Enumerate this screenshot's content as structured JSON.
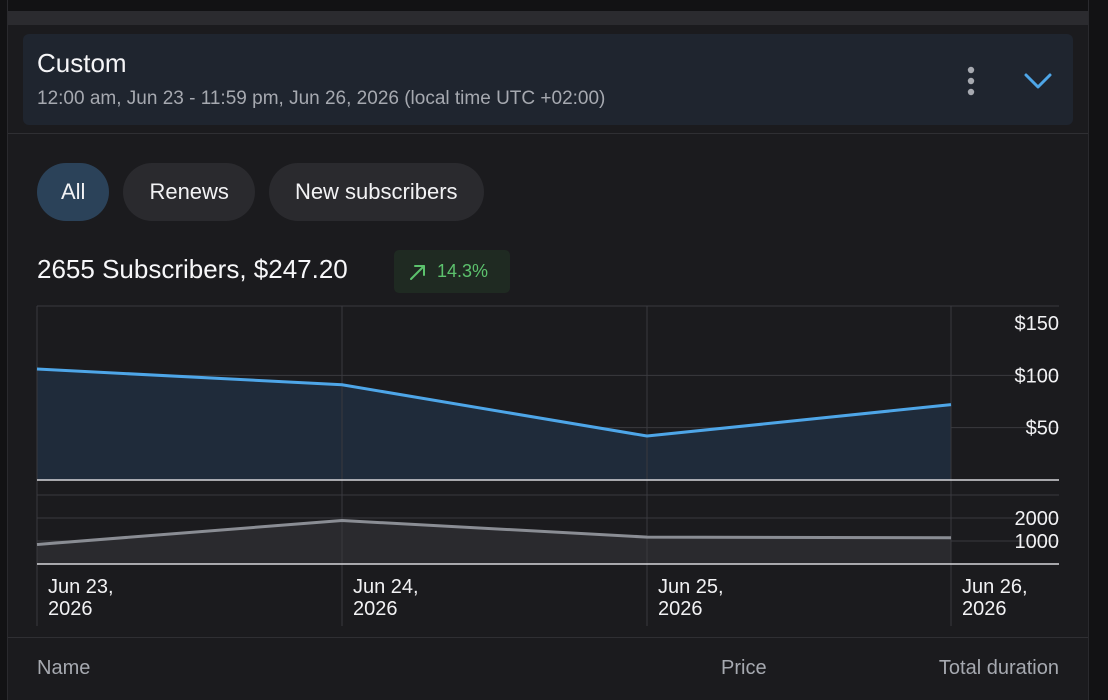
{
  "date_range": {
    "title": "Custom",
    "subtitle": "12:00 am, Jun 23 - 11:59 pm, Jun 26, 2026 (local time UTC +02:00)"
  },
  "filters": [
    {
      "label": "All",
      "selected": true
    },
    {
      "label": "Renews",
      "selected": false
    },
    {
      "label": "New subscribers",
      "selected": false
    }
  ],
  "summary": {
    "text": "2655 Subscribers, $247.20",
    "trend": "14.3%",
    "trend_direction": "up"
  },
  "colors": {
    "accent": "#4ea6e8",
    "trend_positive": "#5cc26d",
    "subscriber_line": "#8a8d94"
  },
  "chart_data": [
    {
      "type": "area",
      "x": [
        "Jun 23, 2026",
        "Jun 24, 2026",
        "Jun 25, 2026",
        "Jun 26, 2026"
      ],
      "series": [
        {
          "values": [
            106,
            91,
            42,
            72
          ]
        }
      ],
      "ylim": [
        0,
        150
      ],
      "y_ticks": [
        "$50",
        "$100",
        "$150"
      ],
      "grid": true
    },
    {
      "type": "area",
      "x": [
        "Jun 23, 2026",
        "Jun 24, 2026",
        "Jun 25, 2026",
        "Jun 26, 2026"
      ],
      "series": [
        {
          "values": [
            850,
            1890,
            1170,
            1140
          ]
        }
      ],
      "ylim": [
        0,
        3000
      ],
      "y_ticks": [
        "1000",
        "2000"
      ],
      "grid": true
    }
  ],
  "x_axis": {
    "labels": [
      {
        "line1": "Jun 23,",
        "line2": "2026"
      },
      {
        "line1": "Jun 24,",
        "line2": "2026"
      },
      {
        "line1": "Jun 25,",
        "line2": "2026"
      },
      {
        "line1": "Jun 26,",
        "line2": "2026"
      }
    ]
  },
  "table": {
    "columns": [
      "Name",
      "Price",
      "Total duration"
    ]
  }
}
